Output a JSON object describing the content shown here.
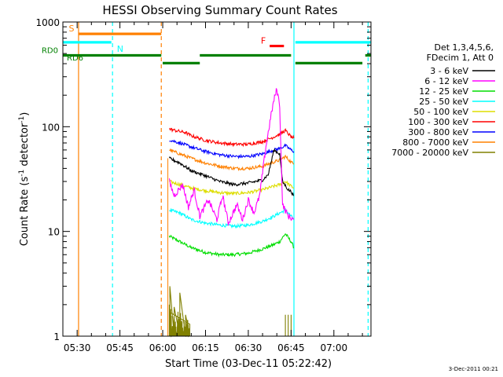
{
  "chart_data": {
    "type": "line",
    "title": "HESSI Observing Summary Count Rates",
    "xlabel": "Start Time (03-Dec-11 05:22:42)",
    "ylabel_main": "Count Rate (s",
    "ylabel_sup1": "-1",
    "ylabel_mid": " detector",
    "ylabel_sup2": "-1",
    "ylabel_end": ")",
    "yscale": "log",
    "ylim": [
      1,
      1000
    ],
    "xlim_minutes": [
      325,
      433
    ],
    "x_ticks": [
      {
        "label": "05:30",
        "minute": 330
      },
      {
        "label": "05:45",
        "minute": 345
      },
      {
        "label": "06:00",
        "minute": 360
      },
      {
        "label": "06:15",
        "minute": 375
      },
      {
        "label": "06:30",
        "minute": 390
      },
      {
        "label": "06:45",
        "minute": 405
      },
      {
        "label": "07:00",
        "minute": 420
      }
    ],
    "y_ticks": [
      {
        "label": "1",
        "value": 1
      },
      {
        "label": "10",
        "value": 10
      },
      {
        "label": "100",
        "value": 100
      },
      {
        "label": "1000",
        "value": 1000
      }
    ],
    "legend_header": [
      "Det 1,3,4,5,6,",
      "FDecim 1, Att 0"
    ],
    "series": [
      {
        "name": "3 - 6 keV",
        "color": "#000000",
        "x": [
          362.3,
          366,
          370,
          375,
          380,
          385,
          390,
          395,
          397,
          399,
          401,
          402,
          404,
          405,
          406
        ],
        "y": [
          50,
          45,
          38,
          34,
          30,
          28,
          29,
          31,
          35,
          60,
          55,
          30,
          25,
          24,
          22
        ]
      },
      {
        "name": "6 - 12 keV",
        "color": "#ff00ff",
        "x": [
          362.3,
          364,
          367,
          369,
          371,
          373,
          376,
          379,
          381,
          383,
          386,
          388,
          390,
          392,
          394,
          396,
          398,
          399,
          400,
          401,
          402,
          404,
          406
        ],
        "y": [
          30,
          22,
          28,
          17,
          25,
          14,
          20,
          13,
          22,
          12,
          18,
          13,
          20,
          15,
          22,
          60,
          130,
          180,
          230,
          160,
          18,
          14,
          13
        ]
      },
      {
        "name": "12 - 25 keV",
        "color": "#00dd00",
        "x": [
          362.3,
          366,
          370,
          375,
          380,
          385,
          390,
          395,
          399,
          401,
          403,
          405,
          406
        ],
        "y": [
          9,
          8,
          7,
          6.3,
          6,
          6,
          6.2,
          6.8,
          7.5,
          8,
          9.5,
          8,
          7
        ]
      },
      {
        "name": "25 - 50 keV",
        "color": "#00ffff",
        "x": [
          362.3,
          366,
          370,
          375,
          380,
          385,
          390,
          395,
          399,
          401,
          403,
          405,
          406
        ],
        "y": [
          16,
          15,
          13,
          12,
          11.5,
          11.2,
          11.5,
          12.5,
          14,
          15,
          16,
          14,
          13
        ]
      },
      {
        "name": "50 - 100 keV",
        "color": "#dddd00",
        "x": [
          362.3,
          366,
          370,
          375,
          380,
          385,
          390,
          395,
          399,
          401,
          403,
          405,
          406
        ],
        "y": [
          30,
          28,
          26,
          24.5,
          23.5,
          23,
          23.5,
          25,
          27,
          28,
          30,
          27,
          26
        ]
      },
      {
        "name": "100 - 300 keV",
        "color": "#ff0000",
        "x": [
          362.3,
          366,
          368,
          370,
          375,
          380,
          385,
          390,
          395,
          399,
          401,
          403,
          405,
          406
        ],
        "y": [
          95,
          90,
          88,
          82,
          74,
          70,
          68,
          68,
          72,
          80,
          85,
          92,
          80,
          78
        ]
      },
      {
        "name": "300 - 800 keV",
        "color": "#0000ff",
        "x": [
          362.3,
          366,
          370,
          375,
          380,
          385,
          390,
          395,
          399,
          401,
          403,
          405,
          406
        ],
        "y": [
          75,
          70,
          64,
          58,
          54,
          52,
          52,
          55,
          60,
          62,
          66,
          60,
          58
        ]
      },
      {
        "name": "800 - 7000 keV",
        "color": "#ff8000",
        "x": [
          362.3,
          366,
          370,
          375,
          380,
          385,
          390,
          395,
          399,
          401,
          403,
          405,
          406
        ],
        "y": [
          60,
          55,
          50,
          45,
          42,
          40,
          40,
          42,
          46,
          48,
          52,
          46,
          44
        ]
      },
      {
        "name": "7000 - 20000 keV",
        "color": "#808000",
        "x": [
          362.3,
          362.5,
          364,
          366,
          368,
          369.5
        ],
        "y": [
          2.0,
          3.0,
          1.9,
          2.6,
          1.6,
          1.3
        ]
      }
    ],
    "flag_bars": [
      {
        "label": "S",
        "color": "#ff8000",
        "x_start": 330.5,
        "x_end": 359.5,
        "y": 770
      },
      {
        "label": "N",
        "color": "#00ffff",
        "x_start": 325,
        "x_end": 342,
        "y": 640
      },
      {
        "label": "",
        "color": "#00ffff",
        "x_start": 406.5,
        "x_end": 433,
        "y": 640
      },
      {
        "label": "RD0",
        "color": "#008000",
        "x_start": 325,
        "x_end": 359.5,
        "y": 480
      },
      {
        "label": "",
        "color": "#008000",
        "x_start": 373,
        "x_end": 405,
        "y": 480
      },
      {
        "label": "",
        "color": "#008000",
        "x_start": 431,
        "x_end": 433,
        "y": 480
      },
      {
        "label": "",
        "color": "#008000",
        "x_start": 360,
        "x_end": 373,
        "y": 405
      },
      {
        "label": "",
        "color": "#008000",
        "x_start": 406.5,
        "x_end": 430,
        "y": 405
      },
      {
        "label": "F",
        "color": "#ff0000",
        "x_start": 397.5,
        "x_end": 402.5,
        "y": 590
      }
    ],
    "extra_labels": {
      "rd6": "RD6",
      "date_stamp": "3-Dec-2011 00:21"
    },
    "vertical_lines": [
      {
        "minute": 330.5,
        "color": "#ff8000",
        "style": "solid"
      },
      {
        "minute": 342.4,
        "color": "#00ffff",
        "style": "dashed"
      },
      {
        "minute": 359.5,
        "color": "#ff8000",
        "style": "dashed"
      },
      {
        "minute": 406,
        "color": "#00ffff",
        "style": "solid"
      },
      {
        "minute": 432,
        "color": "#00ffff",
        "style": "dashed"
      }
    ],
    "data_start_minute": 361.8
  }
}
